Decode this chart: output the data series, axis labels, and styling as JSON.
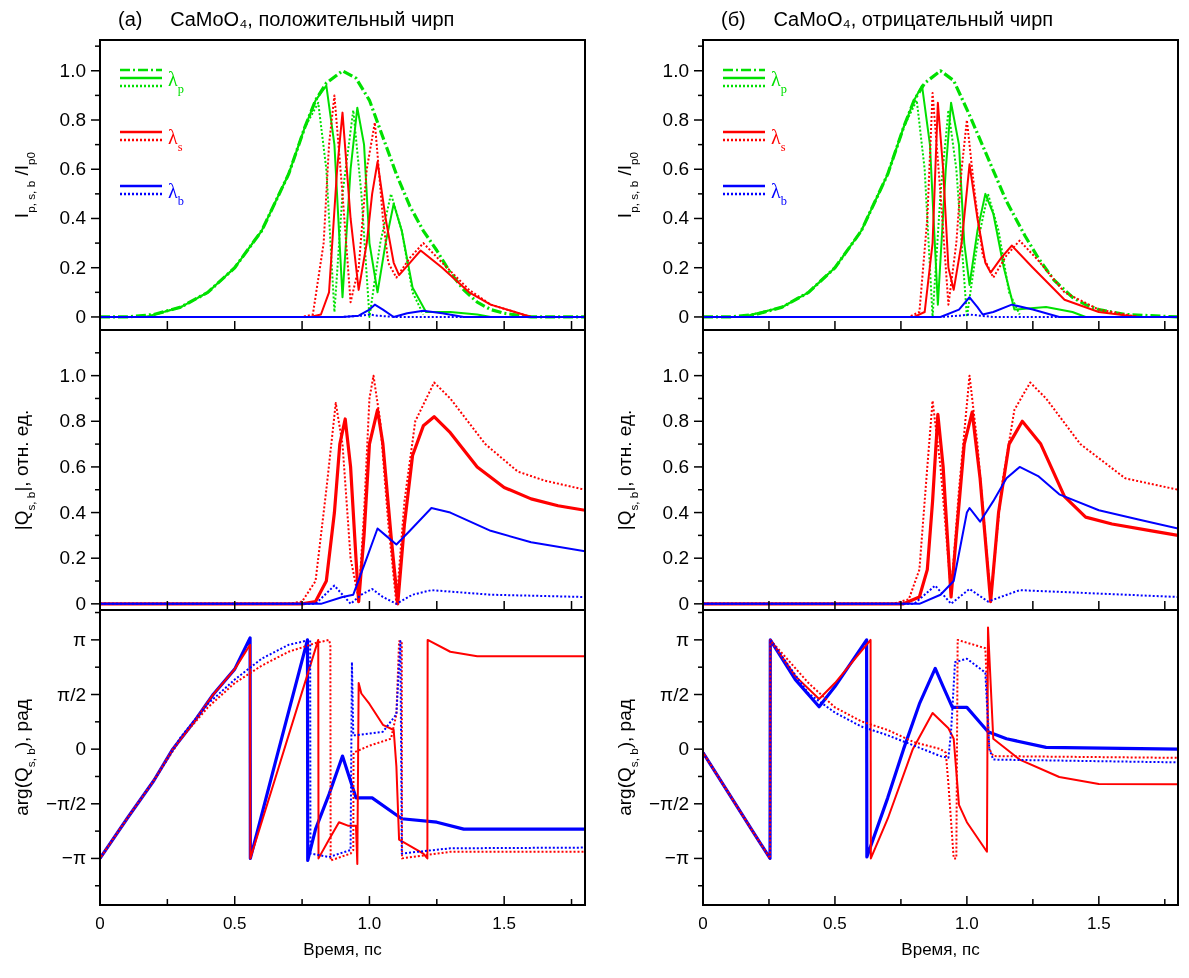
{
  "chart_data": [
    {
      "type": "line",
      "title": "(a)     CaMoO₄, положительный чирп",
      "ylabel": "I$_{p, s, b}$ /I$_{p0}$",
      "xlim": [
        0,
        1.8
      ],
      "xticks": [
        {
          "value": 0,
          "label": null
        },
        {
          "value": 0.25,
          "label": null
        },
        {
          "value": 0.5,
          "label": null
        },
        {
          "value": 0.75,
          "label": null
        },
        {
          "value": 1,
          "label": null
        },
        {
          "value": 1.25,
          "label": null
        },
        {
          "value": 1.5,
          "label": null
        },
        {
          "value": 1.75,
          "label": null
        }
      ],
      "ylim": [
        -0.053,
        1.125
      ],
      "yticks": [
        0,
        {
          "value": 0.1,
          "label": null
        },
        0.2,
        {
          "value": 0.3,
          "label": null
        },
        0.4,
        {
          "value": 0.5,
          "label": null
        },
        0.6,
        {
          "value": 0.7,
          "label": null
        },
        0.8,
        {
          "value": 0.9,
          "label": null
        },
        {
          "value": 1,
          "label": "1.0"
        },
        {
          "value": 1.1,
          "label": null
        }
      ],
      "tick_labels": "y",
      "legend": "top left",
      "series": [
        {
          "name": "λ$_{p}$",
          "color": "#00e000",
          "line_style": "dashdot",
          "x": [
            0,
            0.1,
            0.2,
            0.3,
            0.4,
            0.5,
            0.6,
            0.7,
            0.76,
            0.8,
            0.84,
            0.9,
            0.95,
            1.0,
            1.05,
            1.1,
            1.15,
            1.2,
            1.25,
            1.3,
            1.35,
            1.4,
            1.45,
            1.5,
            1.6,
            1.8
          ],
          "values": [
            0,
            0,
            0.01,
            0.04,
            0.1,
            0.2,
            0.35,
            0.58,
            0.77,
            0.88,
            0.95,
            1.0,
            0.97,
            0.88,
            0.73,
            0.58,
            0.45,
            0.35,
            0.27,
            0.18,
            0.11,
            0.06,
            0.03,
            0.015,
            0,
            0
          ]
        },
        {
          "color": "#00e000",
          "line_style": "solid",
          "x": [
            0.17,
            0.3,
            0.4,
            0.5,
            0.6,
            0.7,
            0.76,
            0.8,
            0.84,
            0.87,
            0.9,
            0.93,
            0.955,
            0.98,
            1.0,
            1.03,
            1.06,
            1.09,
            1.12,
            1.16,
            1.21,
            1.3,
            1.4,
            1.45,
            1.6
          ],
          "values": [
            0,
            0.04,
            0.1,
            0.2,
            0.35,
            0.58,
            0.77,
            0.88,
            0.94,
            0.7,
            0.08,
            0.6,
            0.85,
            0.7,
            0.3,
            0.1,
            0.3,
            0.46,
            0.35,
            0.12,
            0.02,
            0.02,
            0.01,
            0,
            0
          ]
        },
        {
          "color": "#00e000",
          "line_style": "dotted",
          "x": [
            0.17,
            0.3,
            0.4,
            0.5,
            0.6,
            0.7,
            0.76,
            0.81,
            0.84,
            0.87,
            0.9,
            0.94,
            0.97,
            1.0,
            1.04,
            1.08,
            1.12,
            1.16,
            1.2
          ],
          "values": [
            0,
            0.04,
            0.1,
            0.2,
            0.35,
            0.58,
            0.77,
            0.87,
            0.6,
            0.02,
            0.5,
            0.84,
            0.5,
            0,
            0.3,
            0.5,
            0.35,
            0.1,
            0.01
          ]
        },
        {
          "name": "λ$_{s}$",
          "color": "#ff0000",
          "line_style": "solid",
          "x": [
            0,
            0.78,
            0.82,
            0.85,
            0.88,
            0.9,
            0.93,
            0.96,
            0.99,
            1.01,
            1.03,
            1.06,
            1.09,
            1.11,
            1.15,
            1.19,
            1.27,
            1.37,
            1.45,
            1.6,
            1.8
          ],
          "values": [
            0,
            0,
            0.01,
            0.1,
            0.6,
            0.83,
            0.4,
            0.11,
            0.3,
            0.5,
            0.63,
            0.4,
            0.22,
            0.17,
            0.22,
            0.27,
            0.2,
            0.1,
            0.05,
            0,
            0
          ]
        },
        {
          "color": "#ff0000",
          "line_style": "dotted",
          "x": [
            0,
            0.75,
            0.79,
            0.83,
            0.85,
            0.87,
            0.9,
            0.93,
            0.96,
            0.99,
            1.02,
            1.05,
            1.07,
            1.1,
            1.15,
            1.2,
            1.27,
            1.37,
            1.45,
            1.6,
            1.8
          ],
          "values": [
            0,
            0,
            0.01,
            0.3,
            0.7,
            0.9,
            0.5,
            0.06,
            0.2,
            0.6,
            0.79,
            0.4,
            0.22,
            0.16,
            0.24,
            0.3,
            0.22,
            0.11,
            0.05,
            0,
            0
          ]
        },
        {
          "name": "λ$_{b}$",
          "color": "#0000ff",
          "line_style": "solid",
          "x": [
            0,
            0.9,
            0.96,
            1.0,
            1.02,
            1.05,
            1.09,
            1.14,
            1.2,
            1.27,
            1.35,
            1.8
          ],
          "values": [
            0,
            0,
            0.005,
            0.03,
            0.05,
            0.03,
            0,
            0.015,
            0.025,
            0.015,
            0,
            0
          ]
        },
        {
          "color": "#0000ff",
          "line_style": "dotted",
          "x": [
            0,
            0.9,
            0.97,
            1.0,
            1.03,
            1.1,
            1.8
          ],
          "values": [
            0,
            0,
            0.005,
            0.01,
            0.005,
            0,
            0
          ]
        }
      ]
    },
    {
      "type": "line",
      "title": "(б)     CaMoO₄, отрицательный чирп",
      "ylabel": "I$_{p, s, b}$ /I$_{p0}$",
      "xlim": [
        0,
        1.8
      ],
      "xticks": [
        {
          "value": 0,
          "label": null
        },
        {
          "value": 0.25,
          "label": null
        },
        {
          "value": 0.5,
          "label": null
        },
        {
          "value": 0.75,
          "label": null
        },
        {
          "value": 1,
          "label": null
        },
        {
          "value": 1.25,
          "label": null
        },
        {
          "value": 1.5,
          "label": null
        },
        {
          "value": 1.75,
          "label": null
        }
      ],
      "ylim": [
        -0.053,
        1.125
      ],
      "yticks": [
        0,
        {
          "value": 0.1,
          "label": null
        },
        0.2,
        {
          "value": 0.3,
          "label": null
        },
        0.4,
        {
          "value": 0.5,
          "label": null
        },
        0.6,
        {
          "value": 0.7,
          "label": null
        },
        0.8,
        {
          "value": 0.9,
          "label": null
        },
        {
          "value": 1,
          "label": "1.0"
        },
        {
          "value": 1.1,
          "label": null
        }
      ],
      "tick_labels": "y",
      "legend": "top left",
      "series": [
        {
          "name": "λ$_{p}$",
          "color": "#00e000",
          "line_style": "dashdot",
          "x": [
            0,
            0.1,
            0.2,
            0.3,
            0.4,
            0.5,
            0.6,
            0.7,
            0.76,
            0.8,
            0.84,
            0.9,
            0.95,
            1.01,
            1.05,
            1.09,
            1.15,
            1.22,
            1.27,
            1.33,
            1.4,
            1.45,
            1.5,
            1.6,
            1.8
          ],
          "values": [
            0,
            0,
            0.01,
            0.04,
            0.1,
            0.2,
            0.35,
            0.58,
            0.77,
            0.88,
            0.95,
            1.0,
            0.96,
            0.82,
            0.72,
            0.62,
            0.47,
            0.33,
            0.24,
            0.15,
            0.08,
            0.05,
            0.03,
            0.01,
            0
          ]
        },
        {
          "color": "#00e000",
          "line_style": "solid",
          "x": [
            0,
            0.15,
            0.3,
            0.4,
            0.5,
            0.6,
            0.7,
            0.76,
            0.8,
            0.83,
            0.86,
            0.89,
            0.92,
            0.94,
            0.97,
            0.99,
            1.01,
            1.04,
            1.07,
            1.1,
            1.14,
            1.18,
            1.3,
            1.4,
            1.45,
            1.8
          ],
          "values": [
            0,
            0,
            0.04,
            0.1,
            0.2,
            0.35,
            0.58,
            0.77,
            0.88,
            0.94,
            0.7,
            0.05,
            0.6,
            0.87,
            0.7,
            0.3,
            0.13,
            0.35,
            0.5,
            0.42,
            0.2,
            0.03,
            0.04,
            0.02,
            0,
            0
          ]
        },
        {
          "color": "#00e000",
          "line_style": "dotted",
          "x": [
            0.15,
            0.3,
            0.4,
            0.5,
            0.6,
            0.7,
            0.76,
            0.81,
            0.84,
            0.87,
            0.9,
            0.93,
            0.96,
            1.0,
            1.04,
            1.08,
            1.12,
            1.16,
            1.2
          ],
          "values": [
            0,
            0.04,
            0.1,
            0.2,
            0.35,
            0.58,
            0.77,
            0.88,
            0.6,
            0,
            0.5,
            0.84,
            0.6,
            0,
            0.3,
            0.5,
            0.35,
            0.1,
            0.01
          ]
        },
        {
          "name": "λ$_{s}$",
          "color": "#ff0000",
          "line_style": "solid",
          "x": [
            0,
            0.8,
            0.84,
            0.87,
            0.89,
            0.91,
            0.93,
            0.95,
            0.98,
            1.01,
            1.04,
            1.07,
            1.09,
            1.13,
            1.17,
            1.25,
            1.37,
            1.5,
            1.65,
            1.8
          ],
          "values": [
            0,
            0,
            0.02,
            0.3,
            0.87,
            0.6,
            0.2,
            0.11,
            0.3,
            0.62,
            0.4,
            0.22,
            0.18,
            0.24,
            0.29,
            0.2,
            0.07,
            0.02,
            0,
            0
          ]
        },
        {
          "color": "#ff0000",
          "line_style": "dotted",
          "x": [
            0,
            0.78,
            0.82,
            0.85,
            0.87,
            0.9,
            0.93,
            0.96,
            0.98,
            1.0,
            1.03,
            1.06,
            1.1,
            1.15,
            1.2,
            1.27,
            1.37,
            1.5,
            1.65,
            1.8
          ],
          "values": [
            0,
            0,
            0.02,
            0.4,
            0.91,
            0.5,
            0.05,
            0.3,
            0.6,
            0.8,
            0.5,
            0.25,
            0.16,
            0.25,
            0.31,
            0.23,
            0.1,
            0.03,
            0,
            0
          ]
        },
        {
          "name": "λ$_{b}$",
          "color": "#0000ff",
          "line_style": "solid",
          "x": [
            0,
            0.9,
            0.97,
            1.01,
            1.04,
            1.06,
            1.1,
            1.17,
            1.25,
            1.35,
            1.8
          ],
          "values": [
            0,
            0,
            0.03,
            0.08,
            0.04,
            0.01,
            0.02,
            0.05,
            0.03,
            0,
            0
          ]
        },
        {
          "color": "#0000ff",
          "line_style": "dotted",
          "x": [
            0,
            0.9,
            0.97,
            1.01,
            1.05,
            1.1,
            1.8
          ],
          "values": [
            0,
            0,
            0.005,
            0.01,
            0.005,
            0,
            0
          ]
        }
      ]
    },
    {
      "type": "line",
      "ylabel": "|Q$_{s, b}$|, отн. ед.",
      "xlim": [
        0,
        1.8
      ],
      "xticks": [
        {
          "value": 0,
          "label": null
        },
        {
          "value": 0.25,
          "label": null
        },
        {
          "value": 0.5,
          "label": null
        },
        {
          "value": 0.75,
          "label": null
        },
        {
          "value": 1,
          "label": null
        },
        {
          "value": 1.25,
          "label": null
        },
        {
          "value": 1.5,
          "label": null
        },
        {
          "value": 1.75,
          "label": null
        }
      ],
      "ylim": [
        -0.027,
        1.2
      ],
      "yticks": [
        0,
        {
          "value": 0.1,
          "label": null
        },
        0.2,
        {
          "value": 0.3,
          "label": null
        },
        0.4,
        {
          "value": 0.5,
          "label": null
        },
        0.6,
        {
          "value": 0.7,
          "label": null
        },
        0.8,
        {
          "value": 0.9,
          "label": null
        },
        {
          "value": 1,
          "label": "1.0"
        },
        {
          "value": 1.1,
          "label": null
        }
      ],
      "tick_labels": "y",
      "series": [
        {
          "color": "#ff0000",
          "line_style": "solid",
          "x": [
            0,
            0.75,
            0.8,
            0.84,
            0.87,
            0.89,
            0.91,
            0.93,
            0.95,
            0.96,
            0.98,
            1.0,
            1.03,
            1.05,
            1.08,
            1.105,
            1.13,
            1.16,
            1.2,
            1.24,
            1.3,
            1.4,
            1.5,
            1.6,
            1.7,
            1.8
          ],
          "values": [
            0,
            0,
            0.01,
            0.1,
            0.4,
            0.7,
            0.81,
            0.6,
            0.2,
            0.01,
            0.3,
            0.7,
            0.85,
            0.7,
            0.3,
            0,
            0.35,
            0.65,
            0.78,
            0.82,
            0.75,
            0.6,
            0.51,
            0.46,
            0.43,
            0.41
          ]
        },
        {
          "color": "#ff0000",
          "line_style": "dotted",
          "x": [
            0,
            0.7,
            0.75,
            0.8,
            0.84,
            0.875,
            0.9,
            0.93,
            0.96,
            0.98,
            1.0,
            1.015,
            1.04,
            1.07,
            1.1,
            1.13,
            1.17,
            1.24,
            1.3,
            1.43,
            1.55,
            1.65,
            1.8
          ],
          "values": [
            0,
            0,
            0.01,
            0.1,
            0.5,
            0.88,
            0.7,
            0.2,
            0.02,
            0.4,
            0.9,
            1.0,
            0.8,
            0.35,
            0,
            0.45,
            0.8,
            0.97,
            0.9,
            0.7,
            0.58,
            0.54,
            0.5
          ]
        },
        {
          "color": "#0000ff",
          "line_style": "solid",
          "x": [
            0,
            0.82,
            0.9,
            0.94,
            0.99,
            1.03,
            1.06,
            1.1,
            1.15,
            1.23,
            1.3,
            1.45,
            1.6,
            1.8
          ],
          "values": [
            0,
            0,
            0.03,
            0.04,
            0.2,
            0.33,
            0.3,
            0.26,
            0.32,
            0.42,
            0.4,
            0.32,
            0.27,
            0.23
          ]
        },
        {
          "color": "#0000ff",
          "line_style": "dotted",
          "x": [
            0,
            0.8,
            0.87,
            0.93,
            0.97,
            1.01,
            1.05,
            1.1,
            1.16,
            1.23,
            1.45,
            1.8
          ],
          "values": [
            0,
            0,
            0.08,
            0,
            0.04,
            0.065,
            0.03,
            0,
            0.04,
            0.06,
            0.04,
            0.03
          ]
        }
      ]
    },
    {
      "type": "line",
      "ylabel": "|Q$_{s, b}$|, отн. ед.",
      "xlim": [
        0,
        1.8
      ],
      "xticks": [
        {
          "value": 0,
          "label": null
        },
        {
          "value": 0.25,
          "label": null
        },
        {
          "value": 0.5,
          "label": null
        },
        {
          "value": 0.75,
          "label": null
        },
        {
          "value": 1,
          "label": null
        },
        {
          "value": 1.25,
          "label": null
        },
        {
          "value": 1.5,
          "label": null
        },
        {
          "value": 1.75,
          "label": null
        }
      ],
      "ylim": [
        -0.027,
        1.2
      ],
      "yticks": [
        0,
        {
          "value": 0.1,
          "label": null
        },
        0.2,
        {
          "value": 0.3,
          "label": null
        },
        0.4,
        {
          "value": 0.5,
          "label": null
        },
        0.6,
        {
          "value": 0.7,
          "label": null
        },
        0.8,
        {
          "value": 0.9,
          "label": null
        },
        {
          "value": 1,
          "label": "1.0"
        },
        {
          "value": 1.1,
          "label": null
        }
      ],
      "tick_labels": "y",
      "series": [
        {
          "color": "#ff0000",
          "line_style": "solid",
          "x": [
            0,
            0.76,
            0.82,
            0.85,
            0.87,
            0.89,
            0.91,
            0.94,
            0.96,
            0.99,
            1.02,
            1.05,
            1.09,
            1.12,
            1.16,
            1.21,
            1.28,
            1.37,
            1.45,
            1.55,
            1.7,
            1.8
          ],
          "values": [
            0,
            0,
            0.03,
            0.15,
            0.45,
            0.83,
            0.6,
            0.03,
            0.3,
            0.7,
            0.84,
            0.55,
            0.01,
            0.4,
            0.7,
            0.8,
            0.7,
            0.47,
            0.38,
            0.35,
            0.32,
            0.3
          ]
        },
        {
          "color": "#ff0000",
          "line_style": "dotted",
          "x": [
            0,
            0.72,
            0.78,
            0.82,
            0.85,
            0.87,
            0.9,
            0.94,
            0.97,
            1.01,
            1.04,
            1.09,
            1.13,
            1.18,
            1.24,
            1.3,
            1.43,
            1.6,
            1.8
          ],
          "values": [
            0,
            0,
            0.02,
            0.15,
            0.6,
            0.89,
            0.6,
            0.05,
            0.5,
            1.0,
            0.7,
            0.02,
            0.5,
            0.85,
            0.97,
            0.9,
            0.7,
            0.55,
            0.5
          ]
        },
        {
          "color": "#0000ff",
          "line_style": "solid",
          "x": [
            0,
            0.82,
            0.9,
            0.95,
            1.0,
            1.01,
            1.05,
            1.1,
            1.15,
            1.2,
            1.27,
            1.35,
            1.5,
            1.65,
            1.8
          ],
          "values": [
            0,
            0,
            0.04,
            0.1,
            0.4,
            0.42,
            0.36,
            0.45,
            0.55,
            0.6,
            0.56,
            0.48,
            0.41,
            0.37,
            0.33
          ]
        },
        {
          "color": "#0000ff",
          "line_style": "dotted",
          "x": [
            0,
            0.8,
            0.88,
            0.94,
            1.01,
            1.08,
            1.2,
            1.4,
            1.8
          ],
          "values": [
            0,
            0,
            0.08,
            0,
            0.065,
            0.01,
            0.06,
            0.05,
            0.03
          ]
        }
      ]
    },
    {
      "type": "line",
      "xlabel": "Время, пс",
      "ylabel": "arg(Q$_{s, b}$), рад",
      "xlim": [
        0,
        1.8
      ],
      "xticks": [
        0,
        {
          "value": 0.25,
          "label": null
        },
        0.5,
        {
          "value": 0.75,
          "label": null
        },
        {
          "value": 1,
          "label": "1.0"
        },
        {
          "value": 1.25,
          "label": null
        },
        1.5,
        {
          "value": 1.75,
          "label": null
        }
      ],
      "ylim": [
        -4.48,
        4.0
      ],
      "yticks": [
        {
          "value": -3.927,
          "label": null
        },
        {
          "value": -3.1416,
          "label": "−π"
        },
        {
          "value": -2.3562,
          "label": null
        },
        {
          "value": -1.5708,
          "label": "−π/2"
        },
        {
          "value": -0.7854,
          "label": null
        },
        0,
        {
          "value": 0.7854,
          "label": null
        },
        {
          "value": 1.5708,
          "label": "π/2"
        },
        {
          "value": 2.3562,
          "label": null
        },
        {
          "value": 3.1416,
          "label": "π"
        },
        {
          "value": 3.927,
          "label": null
        }
      ],
      "series": [
        {
          "color": "#0000ff",
          "line_style": "solid",
          "x": [
            0,
            0.1,
            0.2,
            0.27,
            0.35,
            0.42,
            0.5,
            0.557,
            0.558,
            0.65,
            0.77,
            0.771,
            0.8,
            0.85,
            0.9,
            0.95,
            1.01,
            1.12,
            1.25,
            1.35,
            1.8
          ],
          "values": [
            -3.14,
            -2.0,
            -0.9,
            0,
            0.8,
            1.57,
            2.3,
            3.2,
            -3.14,
            -0.4,
            3.14,
            -3.2,
            -2.3,
            -1.3,
            -0.2,
            -1.4,
            -1.4,
            -2.0,
            -2.1,
            -2.3,
            -2.3
          ]
        },
        {
          "color": "#ff0000",
          "line_style": "solid",
          "x": [
            0,
            0.1,
            0.2,
            0.27,
            0.35,
            0.42,
            0.5,
            0.557,
            0.558,
            0.65,
            0.81,
            0.811,
            0.85,
            0.887,
            0.92,
            0.95,
            0.955,
            0.96,
            0.97,
            1.0,
            1.05,
            1.09,
            1.1,
            1.11,
            1.2,
            1.215,
            1.216,
            1.3,
            1.4,
            1.8
          ],
          "values": [
            -3.14,
            -2.0,
            -0.9,
            0,
            0.8,
            1.57,
            2.3,
            3.0,
            -3.14,
            -0.85,
            3.14,
            -3.14,
            -2.6,
            -2.1,
            -2.2,
            -2.2,
            -3.3,
            1.9,
            1.6,
            1.3,
            0.7,
            0.55,
            -0.5,
            -2.6,
            -3.0,
            -3.14,
            3.14,
            2.8,
            2.67,
            2.67
          ]
        },
        {
          "color": "#ff0000",
          "line_style": "dotted",
          "x": [
            0,
            0.1,
            0.2,
            0.3,
            0.4,
            0.5,
            0.6,
            0.7,
            0.8,
            0.85,
            0.855,
            0.856,
            0.93,
            0.94,
            0.941,
            1.0,
            1.08,
            1.1,
            1.11,
            1.12,
            1.121,
            1.3,
            1.8
          ],
          "values": [
            -3.14,
            -2.0,
            -0.9,
            0.3,
            1.2,
            1.9,
            2.4,
            2.8,
            3.05,
            3.14,
            3.0,
            -3.2,
            -3.0,
            -2.9,
            -0.1,
            0.1,
            0.3,
            1.0,
            3.1,
            3.1,
            -3.14,
            -2.95,
            -2.95
          ]
        },
        {
          "color": "#0000ff",
          "line_style": "dotted",
          "x": [
            0,
            0.1,
            0.2,
            0.3,
            0.4,
            0.5,
            0.6,
            0.7,
            0.78,
            0.781,
            0.85,
            0.93,
            0.935,
            0.94,
            0.95,
            1.05,
            1.1,
            1.115,
            1.12,
            1.3,
            1.8
          ],
          "values": [
            -3.14,
            -2.0,
            -0.9,
            0.35,
            1.3,
            2.0,
            2.6,
            3.0,
            3.14,
            -3.0,
            -3.1,
            -2.9,
            2.5,
            0.4,
            0.4,
            0.5,
            1.0,
            3.1,
            -3.0,
            -2.85,
            -2.83
          ]
        }
      ]
    },
    {
      "type": "line",
      "xlabel": "Время, пс",
      "ylabel": "arg(Q$_{s, b}$), рад",
      "xlim": [
        0,
        1.8
      ],
      "xticks": [
        0,
        {
          "value": 0.25,
          "label": null
        },
        0.5,
        {
          "value": 0.75,
          "label": null
        },
        {
          "value": 1,
          "label": "1.0"
        },
        {
          "value": 1.25,
          "label": null
        },
        1.5,
        {
          "value": 1.75,
          "label": null
        }
      ],
      "ylim": [
        -4.48,
        4.0
      ],
      "yticks": [
        {
          "value": -3.927,
          "label": null
        },
        {
          "value": -3.1416,
          "label": "−π"
        },
        {
          "value": -2.3562,
          "label": null
        },
        {
          "value": -1.5708,
          "label": "−π/2"
        },
        {
          "value": -0.7854,
          "label": null
        },
        0,
        {
          "value": 0.7854,
          "label": null
        },
        {
          "value": 1.5708,
          "label": "π/2"
        },
        {
          "value": 2.3562,
          "label": null
        },
        {
          "value": 3.1416,
          "label": "π"
        },
        {
          "value": 3.927,
          "label": null
        }
      ],
      "series": [
        {
          "color": "#0000ff",
          "line_style": "solid",
          "x": [
            0,
            0.1,
            0.2,
            0.254,
            0.255,
            0.35,
            0.44,
            0.5,
            0.62,
            0.621,
            0.7,
            0.76,
            0.82,
            0.88,
            0.91,
            0.945,
            1.0,
            1.08,
            1.15,
            1.3,
            1.8
          ],
          "values": [
            -0.1,
            -1.3,
            -2.5,
            -3.14,
            3.14,
            2.0,
            1.22,
            1.8,
            3.14,
            -3.1,
            -1.4,
            0,
            1.3,
            2.32,
            1.8,
            1.2,
            1.2,
            0.5,
            0.3,
            0.05,
            0
          ]
        },
        {
          "color": "#ff0000",
          "line_style": "solid",
          "x": [
            0,
            0.1,
            0.2,
            0.254,
            0.255,
            0.35,
            0.44,
            0.5,
            0.635,
            0.636,
            0.7,
            0.795,
            0.87,
            0.93,
            0.95,
            0.97,
            1.0,
            1.076,
            1.08,
            1.1,
            1.2,
            1.35,
            1.5,
            1.8
          ],
          "values": [
            -0.1,
            -1.3,
            -2.5,
            -3.14,
            3.14,
            2.1,
            1.44,
            1.9,
            3.14,
            -3.14,
            -2.0,
            0,
            1.04,
            0.6,
            0.3,
            -1.6,
            -2.1,
            -2.95,
            3.5,
            0.3,
            -0.3,
            -0.8,
            -1.0,
            -1.01
          ]
        },
        {
          "color": "#ff0000",
          "line_style": "dotted",
          "x": [
            0,
            0.1,
            0.2,
            0.254,
            0.255,
            0.4,
            0.5,
            0.6,
            0.7,
            0.8,
            0.9,
            0.92,
            0.93,
            0.95,
            0.96,
            0.965,
            1.07,
            1.085,
            1.1,
            1.8
          ],
          "values": [
            -0.1,
            -1.3,
            -2.5,
            -3.14,
            3.14,
            1.9,
            1.2,
            0.8,
            0.55,
            0.2,
            0,
            -0.1,
            -1.0,
            -3.14,
            -3.14,
            3.14,
            2.9,
            0,
            -0.2,
            -0.25
          ]
        },
        {
          "color": "#0000ff",
          "line_style": "dotted",
          "x": [
            0,
            0.1,
            0.2,
            0.254,
            0.255,
            0.4,
            0.5,
            0.6,
            0.7,
            0.8,
            0.9,
            0.93,
            0.94,
            0.955,
            1.0,
            1.07,
            1.085,
            1.1,
            1.8
          ],
          "values": [
            -0.1,
            -1.3,
            -2.5,
            -3.14,
            3.14,
            1.6,
            1.05,
            0.65,
            0.4,
            0.1,
            -0.2,
            -0.25,
            0.5,
            2.5,
            2.6,
            2.2,
            0,
            -0.3,
            -0.38
          ]
        }
      ]
    }
  ]
}
